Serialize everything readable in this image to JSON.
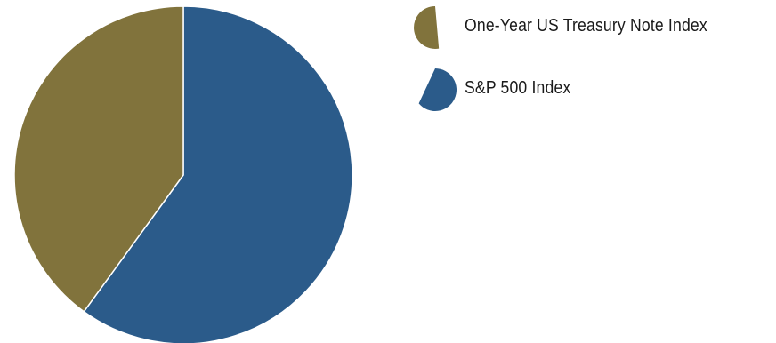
{
  "chart_data": {
    "type": "pie",
    "title": "",
    "slices": [
      {
        "label": "S&P 500 Index",
        "value": 60,
        "color": "#2b5b8a"
      },
      {
        "label": "One-Year US Treasury Note Index",
        "value": 40,
        "color": "#81733c"
      }
    ],
    "legend_position": "top-right",
    "start_angle_deg": 0,
    "direction": "clockwise"
  },
  "legend": {
    "items": [
      {
        "label": "One-Year US Treasury Note Index",
        "color": "#81733c",
        "icon": "olive-pie-wedge-icon"
      },
      {
        "label": "S&P 500 Index",
        "color": "#2b5b8a",
        "icon": "blue-pie-wedge-icon"
      }
    ]
  }
}
